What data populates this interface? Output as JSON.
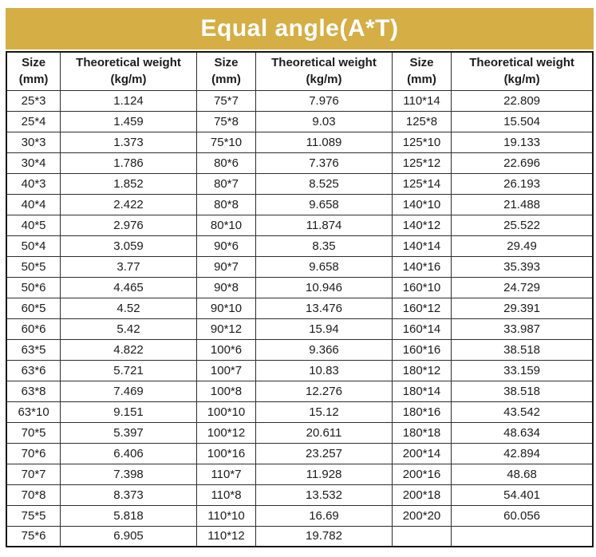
{
  "title": "Equal angle(A*T)",
  "colors": {
    "title_bg": "#d5ae45",
    "title_text": "#ffffff",
    "border": "#2e2e2e",
    "text": "#1c1c1c",
    "background": "#ffffff"
  },
  "header": {
    "size_label": "Size",
    "size_unit": "(mm)",
    "weight_label": "Theoretical weight",
    "weight_unit": "(kg/m)"
  },
  "table": {
    "columns": [
      "Size (mm)",
      "Theoretical weight (kg/m)",
      "Size (mm)",
      "Theoretical weight (kg/m)",
      "Size (mm)",
      "Theoretical weight (kg/m)"
    ],
    "rows": [
      [
        "25*3",
        "1.124",
        "75*7",
        "7.976",
        "110*14",
        "22.809"
      ],
      [
        "25*4",
        "1.459",
        "75*8",
        "9.03",
        "125*8",
        "15.504"
      ],
      [
        "30*3",
        "1.373",
        "75*10",
        "11.089",
        "125*10",
        "19.133"
      ],
      [
        "30*4",
        "1.786",
        "80*6",
        "7.376",
        "125*12",
        "22.696"
      ],
      [
        "40*3",
        "1.852",
        "80*7",
        "8.525",
        "125*14",
        "26.193"
      ],
      [
        "40*4",
        "2.422",
        "80*8",
        "9.658",
        "140*10",
        "21.488"
      ],
      [
        "40*5",
        "2.976",
        "80*10",
        "11.874",
        "140*12",
        "25.522"
      ],
      [
        "50*4",
        "3.059",
        "90*6",
        "8.35",
        "140*14",
        "29.49"
      ],
      [
        "50*5",
        "3.77",
        "90*7",
        "9.658",
        "140*16",
        "35.393"
      ],
      [
        "50*6",
        "4.465",
        "90*8",
        "10.946",
        "160*10",
        "24.729"
      ],
      [
        "60*5",
        "4.52",
        "90*10",
        "13.476",
        "160*12",
        "29.391"
      ],
      [
        "60*6",
        "5.42",
        "90*12",
        "15.94",
        "160*14",
        "33.987"
      ],
      [
        "63*5",
        "4.822",
        "100*6",
        "9.366",
        "160*16",
        "38.518"
      ],
      [
        "63*6",
        "5.721",
        "100*7",
        "10.83",
        "180*12",
        "33.159"
      ],
      [
        "63*8",
        "7.469",
        "100*8",
        "12.276",
        "180*14",
        "38.518"
      ],
      [
        "63*10",
        "9.151",
        "100*10",
        "15.12",
        "180*16",
        "43.542"
      ],
      [
        "70*5",
        "5.397",
        "100*12",
        "20.611",
        "180*18",
        "48.634"
      ],
      [
        "70*6",
        "6.406",
        "100*16",
        "23.257",
        "200*14",
        "42.894"
      ],
      [
        "70*7",
        "7.398",
        "110*7",
        "11.928",
        "200*16",
        "48.68"
      ],
      [
        "70*8",
        "8.373",
        "110*8",
        "13.532",
        "200*18",
        "54.401"
      ],
      [
        "75*5",
        "5.818",
        "110*10",
        "16.69",
        "200*20",
        "60.056"
      ],
      [
        "75*6",
        "6.905",
        "110*12",
        "19.782",
        "",
        ""
      ]
    ]
  }
}
